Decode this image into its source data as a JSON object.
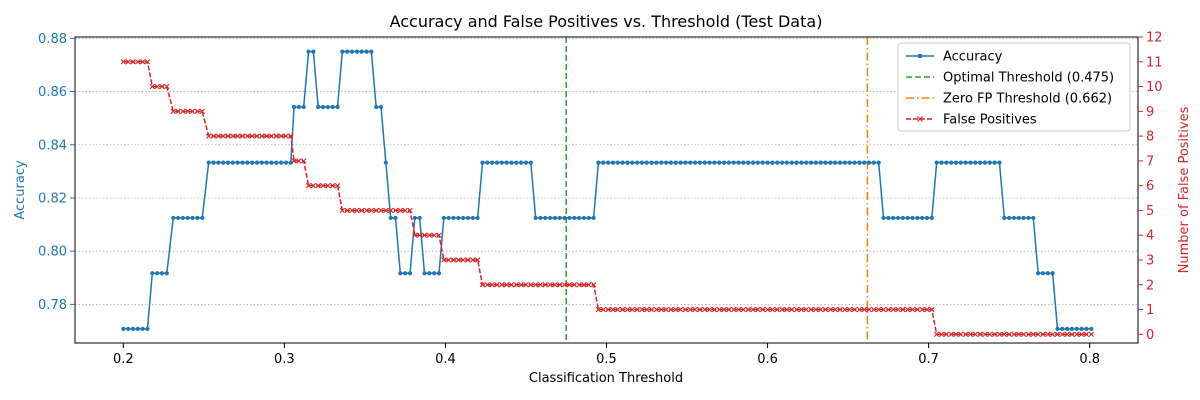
{
  "chart_data": {
    "type": "line",
    "title": "Accuracy and False Positives vs. Threshold (Test Data)",
    "xlabel": "Classification Threshold",
    "ylabel_left": "Accuracy",
    "ylabel_right": "Number of False Positives",
    "xlim": [
      0.17,
      0.83
    ],
    "ylim_left": [
      0.7655,
      0.8805
    ],
    "ylim_right": [
      -0.35,
      12
    ],
    "x_ticks": [
      "0.2",
      "0.3",
      "0.4",
      "0.5",
      "0.6",
      "0.7",
      "0.8"
    ],
    "y_left_ticks": [
      "0.78",
      "0.80",
      "0.82",
      "0.84",
      "0.86",
      "0.88"
    ],
    "y_right_ticks": [
      "0",
      "1",
      "2",
      "3",
      "4",
      "5",
      "6",
      "7",
      "8",
      "9",
      "10",
      "11",
      "12"
    ],
    "grid": "horizontal dotted",
    "legend_position": "top-right",
    "colors": {
      "accuracy": "#1f77b4",
      "optimal": "#2ca02c",
      "zero_fp": "#ff7f0e",
      "false_positives": "#d62728"
    },
    "series": [
      {
        "name": "Accuracy",
        "axis": "left",
        "segments": [
          [
            0.2,
            0.215,
            0.7708
          ],
          [
            0.218,
            0.228,
            0.7917
          ],
          [
            0.231,
            0.25,
            0.8125
          ],
          [
            0.253,
            0.303,
            0.8333
          ],
          [
            0.306,
            0.312,
            0.8542
          ],
          [
            0.315,
            0.318,
            0.875
          ],
          [
            0.321,
            0.333,
            0.8542
          ],
          [
            0.336,
            0.354,
            0.875
          ],
          [
            0.357,
            0.36,
            0.8542
          ],
          [
            0.363,
            0.363,
            0.8333
          ],
          [
            0.366,
            0.369,
            0.8125
          ],
          [
            0.372,
            0.378,
            0.7917
          ],
          [
            0.381,
            0.384,
            0.8125
          ],
          [
            0.387,
            0.396,
            0.7917
          ],
          [
            0.399,
            0.42,
            0.8125
          ],
          [
            0.423,
            0.453,
            0.8333
          ],
          [
            0.456,
            0.492,
            0.8125
          ],
          [
            0.495,
            0.669,
            0.8333
          ],
          [
            0.672,
            0.702,
            0.8125
          ],
          [
            0.705,
            0.744,
            0.8333
          ],
          [
            0.747,
            0.765,
            0.8125
          ],
          [
            0.768,
            0.777,
            0.7917
          ],
          [
            0.78,
            0.8,
            0.7708
          ]
        ]
      },
      {
        "name": "False Positives",
        "axis": "right",
        "segments": [
          [
            0.2,
            0.215,
            11
          ],
          [
            0.218,
            0.228,
            10
          ],
          [
            0.231,
            0.25,
            9
          ],
          [
            0.253,
            0.303,
            8
          ],
          [
            0.306,
            0.312,
            7
          ],
          [
            0.315,
            0.333,
            6
          ],
          [
            0.336,
            0.378,
            5
          ],
          [
            0.381,
            0.396,
            4
          ],
          [
            0.399,
            0.42,
            3
          ],
          [
            0.423,
            0.492,
            2
          ],
          [
            0.495,
            0.702,
            1
          ],
          [
            0.705,
            0.8,
            0
          ]
        ]
      }
    ],
    "vlines": [
      {
        "name": "Optimal Threshold (0.475)",
        "x": 0.475,
        "style": "dashed"
      },
      {
        "name": "Zero FP Threshold (0.662)",
        "x": 0.662,
        "style": "dashdot"
      }
    ],
    "legend": [
      "Accuracy",
      "Optimal Threshold (0.475)",
      "Zero FP Threshold (0.662)",
      "False Positives"
    ]
  }
}
